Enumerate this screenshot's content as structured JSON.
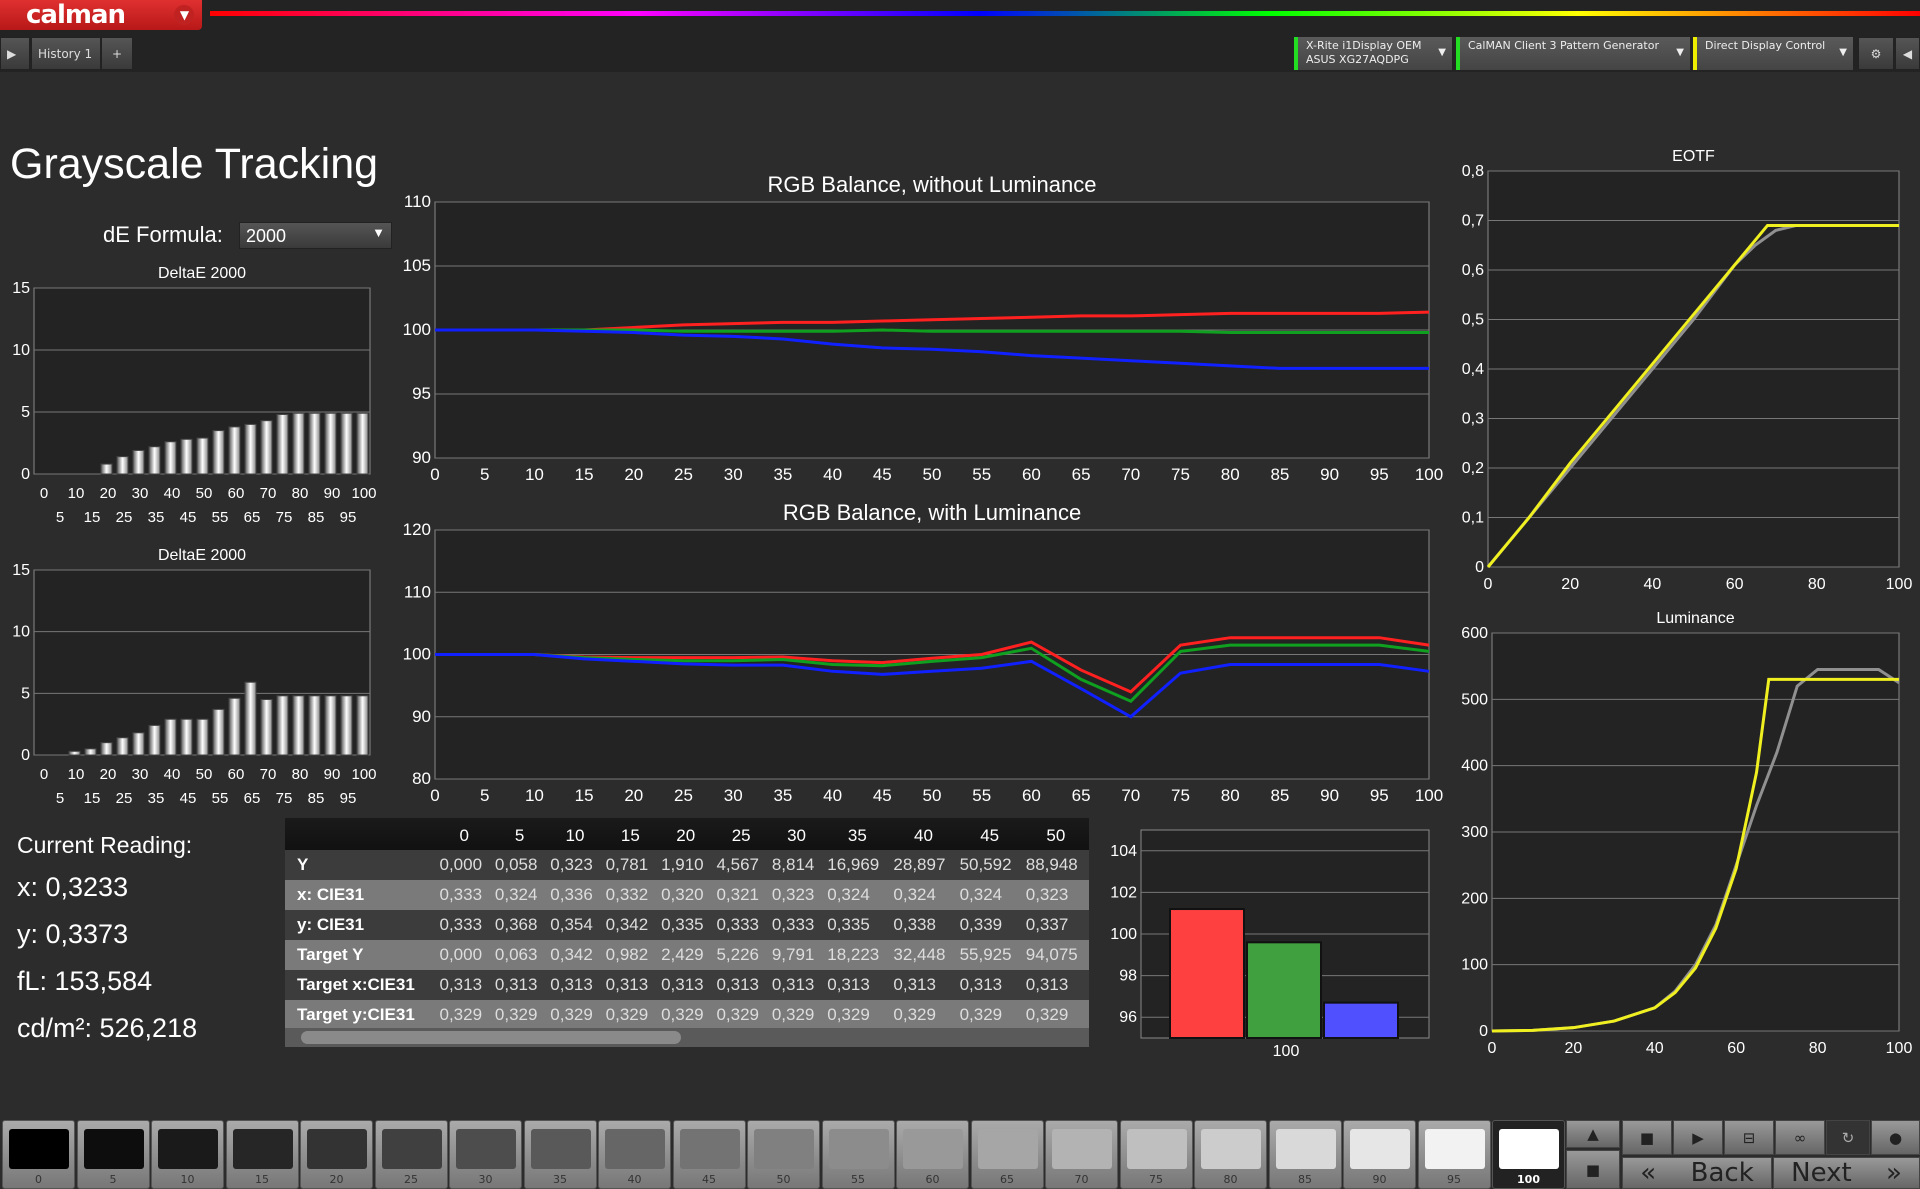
{
  "app": {
    "logo": "calman",
    "history_tab": "History 1",
    "add_tab": "+"
  },
  "devices": [
    {
      "line1": "X-Rite i1Display OEM",
      "line2": "ASUS XG27AQDPG",
      "color": "#22dd22"
    },
    {
      "line1": "CalMAN Client 3 Pattern Generator",
      "line2": "",
      "color": "#22dd22"
    },
    {
      "line1": "Direct Display Control",
      "line2": "",
      "color": "#eeee00"
    }
  ],
  "page": {
    "title": "Grayscale Tracking",
    "de_formula_label": "dE Formula:",
    "de_formula_value": "2000"
  },
  "colors": {
    "red": "#ff2020",
    "green": "#10a020",
    "blue": "#1020ff",
    "yellow": "#f0f020",
    "gray": "#909090"
  },
  "chart_data": [
    {
      "id": "de1",
      "type": "bar",
      "title": "DeltaE 2000",
      "x": [
        0,
        5,
        10,
        15,
        20,
        25,
        30,
        35,
        40,
        45,
        50,
        55,
        60,
        65,
        70,
        75,
        80,
        85,
        90,
        95,
        100
      ],
      "values": [
        0,
        0,
        0,
        0,
        0.8,
        1.4,
        1.9,
        2.2,
        2.6,
        2.8,
        2.9,
        3.5,
        3.8,
        4.0,
        4.3,
        4.8,
        4.9,
        4.9,
        4.9,
        4.9,
        4.9
      ],
      "ylim": [
        0,
        15
      ],
      "yticks": [
        0,
        5,
        10,
        15
      ],
      "xticks_top": [
        "0",
        "10",
        "20",
        "30",
        "40",
        "50",
        "60",
        "70",
        "80",
        "90",
        "100"
      ],
      "xticks_bottom": [
        "5",
        "15",
        "25",
        "35",
        "45",
        "55",
        "65",
        "75",
        "85",
        "95"
      ]
    },
    {
      "id": "de2",
      "type": "bar",
      "title": "DeltaE 2000",
      "x": [
        0,
        5,
        10,
        15,
        20,
        25,
        30,
        35,
        40,
        45,
        50,
        55,
        60,
        65,
        70,
        75,
        80,
        85,
        90,
        95,
        100
      ],
      "values": [
        0,
        0,
        0.3,
        0.5,
        1.0,
        1.4,
        1.8,
        2.4,
        2.9,
        2.9,
        2.9,
        3.7,
        4.6,
        5.9,
        4.5,
        4.8,
        4.8,
        4.8,
        4.8,
        4.8,
        4.8
      ],
      "ylim": [
        0,
        15
      ],
      "yticks": [
        0,
        5,
        10,
        15
      ],
      "xticks_top": [
        "0",
        "10",
        "20",
        "30",
        "40",
        "50",
        "60",
        "70",
        "80",
        "90",
        "100"
      ],
      "xticks_bottom": [
        "5",
        "15",
        "25",
        "35",
        "45",
        "55",
        "65",
        "75",
        "85",
        "95"
      ]
    },
    {
      "id": "rgb1",
      "type": "line",
      "title": "RGB Balance, without Luminance",
      "x": [
        0,
        5,
        10,
        15,
        20,
        25,
        30,
        35,
        40,
        45,
        50,
        55,
        60,
        65,
        70,
        75,
        80,
        85,
        90,
        95,
        100
      ],
      "ylim": [
        90,
        110
      ],
      "yticks": [
        90,
        95,
        100,
        105,
        110
      ],
      "series": [
        {
          "color": "red",
          "values": [
            100,
            100,
            100,
            100,
            100.2,
            100.4,
            100.5,
            100.6,
            100.6,
            100.7,
            100.8,
            100.9,
            101,
            101.1,
            101.1,
            101.2,
            101.3,
            101.3,
            101.3,
            101.3,
            101.4
          ]
        },
        {
          "color": "green",
          "values": [
            100,
            100,
            100,
            100,
            100,
            99.9,
            99.9,
            99.9,
            99.9,
            100,
            99.9,
            99.9,
            99.9,
            99.9,
            99.9,
            99.9,
            99.8,
            99.8,
            99.8,
            99.8,
            99.8
          ]
        },
        {
          "color": "blue",
          "values": [
            100,
            100,
            100,
            99.9,
            99.8,
            99.6,
            99.5,
            99.3,
            98.9,
            98.6,
            98.5,
            98.3,
            98,
            97.8,
            97.6,
            97.4,
            97.2,
            97,
            97,
            97,
            97
          ]
        }
      ]
    },
    {
      "id": "rgb2",
      "type": "line",
      "title": "RGB Balance, with Luminance",
      "x": [
        0,
        5,
        10,
        15,
        20,
        25,
        30,
        35,
        40,
        45,
        50,
        55,
        60,
        65,
        70,
        75,
        80,
        85,
        90,
        95,
        100
      ],
      "ylim": [
        80,
        120
      ],
      "yticks": [
        80,
        90,
        100,
        110,
        120
      ],
      "series": [
        {
          "color": "red",
          "values": [
            100,
            100,
            100,
            99.6,
            99.5,
            99.5,
            99.5,
            99.6,
            99,
            98.7,
            99.4,
            100,
            102,
            97.5,
            94,
            101.5,
            102.7,
            102.7,
            102.7,
            102.7,
            101.5
          ]
        },
        {
          "color": "green",
          "values": [
            100,
            100,
            100,
            99.5,
            99.2,
            99,
            99,
            99.2,
            98.4,
            98.2,
            98.9,
            99.5,
            101,
            96,
            92.5,
            100.5,
            101.5,
            101.5,
            101.5,
            101.5,
            100.5
          ]
        },
        {
          "color": "blue",
          "values": [
            100,
            100,
            100,
            99.3,
            98.9,
            98.5,
            98.3,
            98.3,
            97.3,
            96.8,
            97.3,
            97.8,
            98.9,
            94.5,
            90,
            97,
            98.4,
            98.4,
            98.4,
            98.4,
            97.3
          ]
        }
      ]
    },
    {
      "id": "eotf",
      "type": "line",
      "title": "EOTF",
      "xlim": [
        0,
        100
      ],
      "ylim": [
        0,
        0.8
      ],
      "xticks": [
        0,
        20,
        40,
        60,
        80,
        100
      ],
      "yticks": [
        "0",
        "0,1",
        "0,2",
        "0,3",
        "0,4",
        "0,5",
        "0,6",
        "0,7",
        "0,8"
      ],
      "series": [
        {
          "color": "gray",
          "x": [
            0,
            10,
            20,
            30,
            40,
            50,
            60,
            65,
            70,
            75,
            80,
            90,
            100
          ],
          "values": [
            0,
            0.1,
            0.2,
            0.3,
            0.4,
            0.5,
            0.61,
            0.65,
            0.68,
            0.69,
            0.69,
            0.69,
            0.69
          ]
        },
        {
          "color": "yellow",
          "x": [
            0,
            10,
            20,
            30,
            40,
            50,
            60,
            68,
            80,
            90,
            100
          ],
          "values": [
            0,
            0.1,
            0.21,
            0.31,
            0.41,
            0.51,
            0.61,
            0.69,
            0.69,
            0.69,
            0.69
          ]
        }
      ]
    },
    {
      "id": "lum",
      "type": "line",
      "title": "Luminance",
      "xlim": [
        0,
        100
      ],
      "ylim": [
        0,
        600
      ],
      "xticks": [
        0,
        20,
        40,
        60,
        80,
        100
      ],
      "yticks": [
        0,
        100,
        200,
        300,
        400,
        500,
        600
      ],
      "series": [
        {
          "color": "gray",
          "x": [
            0,
            10,
            20,
            30,
            40,
            45,
            50,
            55,
            60,
            65,
            70,
            75,
            80,
            85,
            90,
            95,
            100
          ],
          "values": [
            0,
            1,
            5,
            15,
            35,
            60,
            100,
            160,
            250,
            340,
            420,
            520,
            545,
            545,
            545,
            545,
            525
          ]
        },
        {
          "color": "yellow",
          "x": [
            0,
            10,
            20,
            30,
            40,
            45,
            50,
            55,
            60,
            65,
            68,
            70,
            80,
            90,
            100
          ],
          "values": [
            0,
            1,
            5,
            15,
            35,
            58,
            95,
            155,
            245,
            390,
            530,
            530,
            530,
            530,
            530
          ]
        }
      ]
    },
    {
      "id": "rgbbar",
      "type": "bar",
      "categories": [
        "100"
      ],
      "ylim": [
        95,
        105
      ],
      "yticks": [
        96,
        98,
        100,
        102,
        104
      ],
      "values": [
        {
          "color": "#ff4040",
          "value": 101.2
        },
        {
          "color": "#40a040",
          "value": 99.6
        },
        {
          "color": "#5050ff",
          "value": 96.7
        }
      ]
    }
  ],
  "reading": {
    "title": "Current Reading:",
    "x": "x: 0,3233",
    "y": "y: 0,3373",
    "fl": "fL: 153,584",
    "cdm2": "cd/m²: 526,218"
  },
  "table": {
    "columns": [
      "0",
      "5",
      "10",
      "15",
      "20",
      "25",
      "30",
      "35",
      "40",
      "45",
      "50"
    ],
    "rows": [
      {
        "label": "Y",
        "values": [
          "0,000",
          "0,058",
          "0,323",
          "0,781",
          "1,910",
          "4,567",
          "8,814",
          "16,969",
          "28,897",
          "50,592",
          "88,948"
        ]
      },
      {
        "label": "x: CIE31",
        "values": [
          "0,333",
          "0,324",
          "0,336",
          "0,332",
          "0,320",
          "0,321",
          "0,323",
          "0,324",
          "0,324",
          "0,324",
          "0,323"
        ]
      },
      {
        "label": "y: CIE31",
        "values": [
          "0,333",
          "0,368",
          "0,354",
          "0,342",
          "0,335",
          "0,333",
          "0,333",
          "0,335",
          "0,338",
          "0,339",
          "0,337"
        ]
      },
      {
        "label": "Target Y",
        "values": [
          "0,000",
          "0,063",
          "0,342",
          "0,982",
          "2,429",
          "5,226",
          "9,791",
          "18,223",
          "32,448",
          "55,925",
          "94,075"
        ]
      },
      {
        "label": "Target x:CIE31",
        "values": [
          "0,313",
          "0,313",
          "0,313",
          "0,313",
          "0,313",
          "0,313",
          "0,313",
          "0,313",
          "0,313",
          "0,313",
          "0,313"
        ]
      },
      {
        "label": "Target y:CIE31",
        "values": [
          "0,329",
          "0,329",
          "0,329",
          "0,329",
          "0,329",
          "0,329",
          "0,329",
          "0,329",
          "0,329",
          "0,329",
          "0,329"
        ]
      }
    ]
  },
  "swatches": [
    "0",
    "5",
    "10",
    "15",
    "20",
    "25",
    "30",
    "35",
    "40",
    "45",
    "50",
    "55",
    "60",
    "65",
    "70",
    "75",
    "80",
    "85",
    "90",
    "95",
    "100"
  ],
  "selected_swatch": "100",
  "nav": {
    "back": "Back",
    "next": "Next"
  }
}
